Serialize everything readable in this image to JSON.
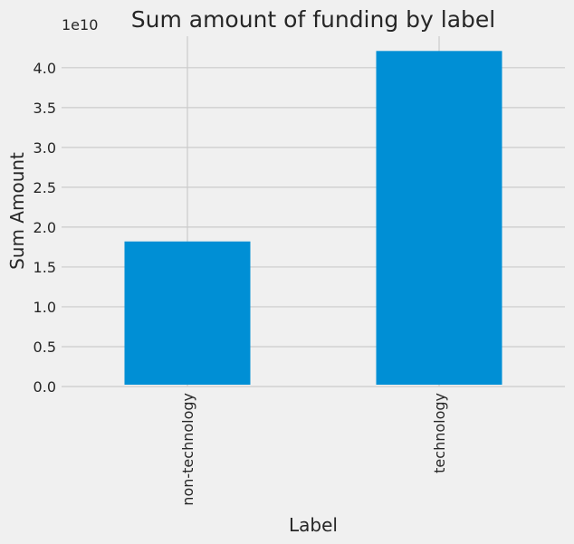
{
  "chart_data": {
    "type": "bar",
    "title": "Sum amount of funding by label",
    "xlabel": "Label",
    "ylabel": "Sum Amount",
    "offset_text": "1e10",
    "categories": [
      "non-technology",
      "technology"
    ],
    "values": [
      18200000000,
      42100000000
    ],
    "ylim": [
      0,
      43500000000
    ],
    "yticks": [
      0,
      0.5,
      1.0,
      1.5,
      2.0,
      2.5,
      3.0,
      3.5,
      4.0
    ],
    "ytick_labels": [
      "0.0",
      "0.5",
      "1.0",
      "1.5",
      "2.0",
      "2.5",
      "3.0",
      "3.5",
      "4.0"
    ],
    "tick_scale": 10000000000,
    "bar_color": "#008fd5",
    "grid": true
  }
}
